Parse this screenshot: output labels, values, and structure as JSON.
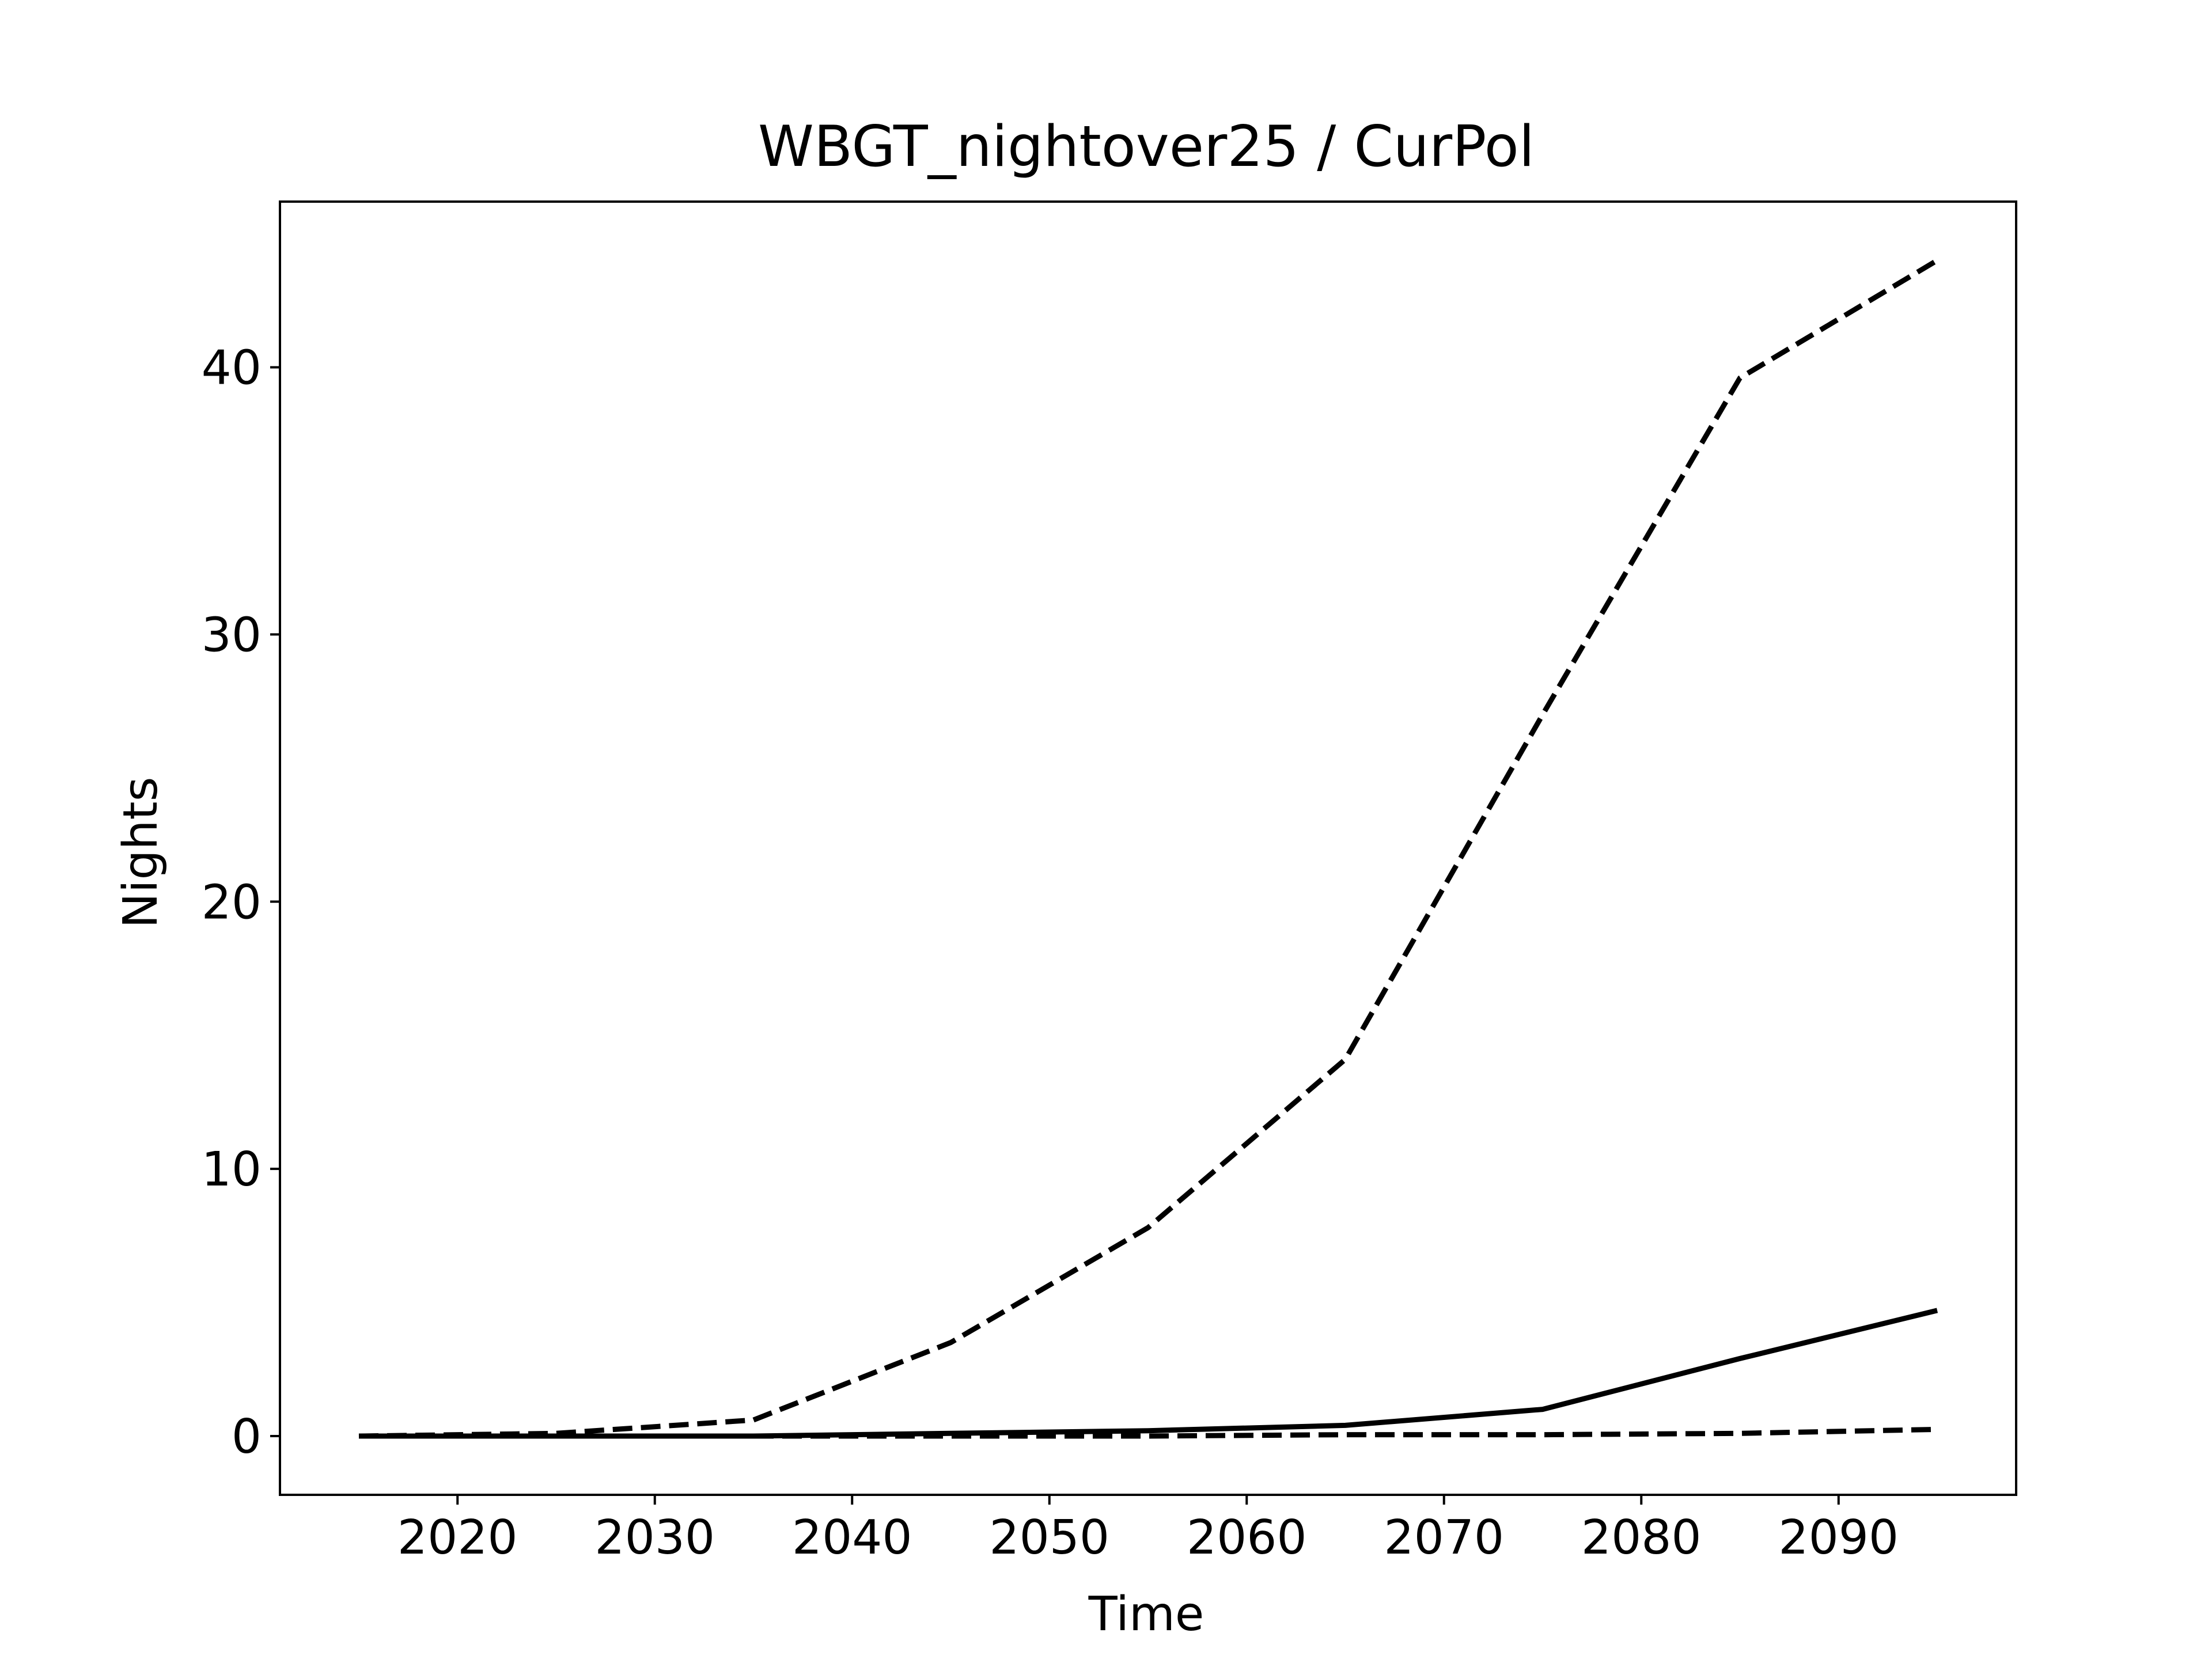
{
  "chart_data": {
    "type": "line",
    "title": "WBGT_nightover25 / CurPol",
    "xlabel": "Time",
    "ylabel": "Nights",
    "xlim": [
      2011,
      2099
    ],
    "ylim": [
      -2.2,
      46.2
    ],
    "xticks": [
      2020,
      2030,
      2040,
      2050,
      2060,
      2070,
      2080,
      2090
    ],
    "yticks": [
      0,
      10,
      20,
      30,
      40
    ],
    "grid": false,
    "legend": null,
    "x": [
      2015,
      2025,
      2035,
      2045,
      2055,
      2065,
      2075,
      2085,
      2095
    ],
    "series": [
      {
        "style": "dashed",
        "color": "#000000",
        "values": [
          0.0,
          0.1,
          0.6,
          3.5,
          7.8,
          14.1,
          27.0,
          39.6,
          44.0
        ]
      },
      {
        "style": "solid",
        "color": "#000000",
        "values": [
          0.0,
          0.0,
          0.0,
          0.1,
          0.2,
          0.4,
          1.0,
          2.9,
          4.7
        ]
      },
      {
        "style": "dashed",
        "color": "#000000",
        "values": [
          0.0,
          0.0,
          0.0,
          0.0,
          0.0,
          0.05,
          0.05,
          0.1,
          0.25
        ]
      }
    ]
  }
}
